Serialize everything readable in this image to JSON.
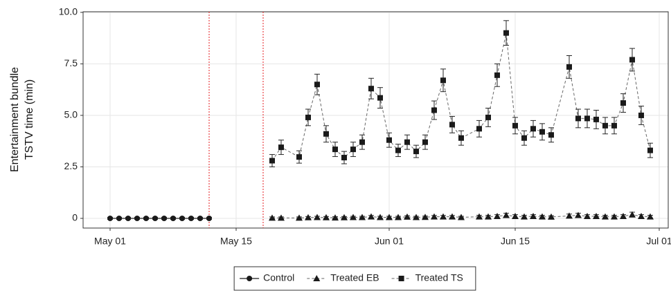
{
  "chart_data": {
    "type": "line",
    "y_label": [
      "Entertainment bundle",
      "TSTV time (min)"
    ],
    "xlim": [
      "Apr 28",
      "Jul 02"
    ],
    "xticks": [
      "May 01",
      "May 15",
      "Jun 01",
      "Jun 15",
      "Jul 01"
    ],
    "ylim": [
      -0.47,
      10.03
    ],
    "yticks": [
      0,
      2.5,
      {
        "value": 5,
        "label": "5.0"
      },
      7.5,
      {
        "value": 10,
        "label": "10.0"
      }
    ],
    "grid": true,
    "vlines": [
      "May 12",
      "May 18"
    ],
    "vline_color": "#e41a1c",
    "legend": "bottom",
    "series": [
      {
        "name": "Control",
        "color": "#1a1a1a",
        "line_style": "solid",
        "marker": "circle",
        "x": [
          "May 01",
          "May 02",
          "May 03",
          "May 04",
          "May 05",
          "May 06",
          "May 07",
          "May 08",
          "May 09",
          "May 10",
          "May 11",
          "May 12"
        ],
        "values": [
          0,
          0,
          0,
          0,
          0,
          0,
          0,
          0,
          0,
          0,
          0,
          0
        ],
        "errors": [
          0.05,
          0.05,
          0.05,
          0.05,
          0.05,
          0.05,
          0.05,
          0.05,
          0.05,
          0.05,
          0.05,
          0.05
        ]
      },
      {
        "name": "Treated EB",
        "color": "#1a1a1a",
        "line_style": "dashed",
        "marker": "triangle",
        "x": [
          "May 19",
          "May 20",
          "May 22",
          "May 23",
          "May 24",
          "May 25",
          "May 26",
          "May 27",
          "May 28",
          "May 29",
          "May 30",
          "May 31",
          "Jun 01",
          "Jun 02",
          "Jun 03",
          "Jun 04",
          "Jun 05",
          "Jun 06",
          "Jun 07",
          "Jun 08",
          "Jun 09",
          "Jun 11",
          "Jun 12",
          "Jun 13",
          "Jun 14",
          "Jun 15",
          "Jun 16",
          "Jun 17",
          "Jun 18",
          "Jun 19",
          "Jun 21",
          "Jun 22",
          "Jun 23",
          "Jun 24",
          "Jun 25",
          "Jun 26",
          "Jun 27",
          "Jun 28",
          "Jun 29",
          "Jun 30"
        ],
        "values": [
          0.02,
          0.02,
          0.02,
          0.04,
          0.05,
          0.04,
          0.03,
          0.04,
          0.05,
          0.05,
          0.08,
          0.05,
          0.05,
          0.05,
          0.07,
          0.05,
          0.06,
          0.08,
          0.08,
          0.08,
          0.05,
          0.08,
          0.08,
          0.1,
          0.15,
          0.1,
          0.08,
          0.1,
          0.08,
          0.07,
          0.12,
          0.15,
          0.1,
          0.1,
          0.08,
          0.08,
          0.1,
          0.18,
          0.1,
          0.08
        ],
        "errors": [
          0.05,
          0.05,
          0.05,
          0.05,
          0.05,
          0.05,
          0.05,
          0.05,
          0.05,
          0.05,
          0.06,
          0.05,
          0.05,
          0.05,
          0.06,
          0.05,
          0.05,
          0.06,
          0.06,
          0.06,
          0.05,
          0.07,
          0.07,
          0.08,
          0.1,
          0.08,
          0.07,
          0.08,
          0.07,
          0.06,
          0.09,
          0.1,
          0.08,
          0.08,
          0.07,
          0.07,
          0.08,
          0.12,
          0.08,
          0.07
        ]
      },
      {
        "name": "Treated TS",
        "color": "#1a1a1a",
        "line_style": "dashed",
        "marker": "square",
        "x": [
          "May 19",
          "May 20",
          "May 22",
          "May 23",
          "May 24",
          "May 25",
          "May 26",
          "May 27",
          "May 28",
          "May 29",
          "May 30",
          "May 31",
          "Jun 01",
          "Jun 02",
          "Jun 03",
          "Jun 04",
          "Jun 05",
          "Jun 06",
          "Jun 07",
          "Jun 08",
          "Jun 09",
          "Jun 11",
          "Jun 12",
          "Jun 13",
          "Jun 14",
          "Jun 15",
          "Jun 16",
          "Jun 17",
          "Jun 18",
          "Jun 19",
          "Jun 21",
          "Jun 22",
          "Jun 23",
          "Jun 24",
          "Jun 25",
          "Jun 26",
          "Jun 27",
          "Jun 28",
          "Jun 29",
          "Jun 30"
        ],
        "values": [
          2.8,
          3.45,
          2.98,
          4.9,
          6.5,
          4.1,
          3.35,
          2.95,
          3.35,
          3.7,
          6.3,
          5.85,
          3.8,
          3.3,
          3.7,
          3.25,
          3.7,
          5.25,
          6.7,
          4.55,
          3.9,
          4.35,
          4.9,
          6.95,
          9.0,
          4.5,
          3.9,
          4.35,
          4.2,
          4.05,
          7.35,
          4.85,
          4.85,
          4.8,
          4.5,
          4.5,
          5.6,
          7.7,
          5.0,
          3.3
        ],
        "errors": [
          0.3,
          0.35,
          0.3,
          0.4,
          0.5,
          0.4,
          0.35,
          0.3,
          0.35,
          0.35,
          0.5,
          0.5,
          0.35,
          0.3,
          0.35,
          0.3,
          0.35,
          0.45,
          0.55,
          0.4,
          0.35,
          0.4,
          0.45,
          0.55,
          0.6,
          0.4,
          0.35,
          0.4,
          0.4,
          0.35,
          0.55,
          0.45,
          0.45,
          0.45,
          0.4,
          0.4,
          0.45,
          0.55,
          0.45,
          0.35
        ]
      }
    ]
  }
}
